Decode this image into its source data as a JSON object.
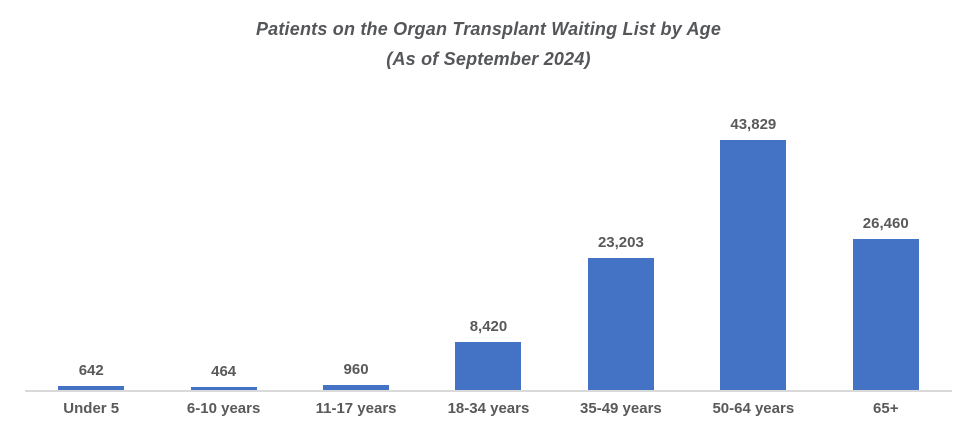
{
  "title": {
    "line1": "Patients on the Organ Transplant Waiting List by Age",
    "line2": "(As of September 2024)"
  },
  "colors": {
    "bar": "#4472C4",
    "text": "#595959",
    "title_text": "#555659",
    "axis_line": "#D9D9D9",
    "background": "#FFFFFF"
  },
  "chart_data": {
    "type": "bar",
    "title": "Patients on the Organ Transplant Waiting List by Age (As of September 2024)",
    "categories": [
      "Under 5",
      "6-10 years",
      "11-17 years",
      "18-34 years",
      "35-49 years",
      "50-64 years",
      "65+"
    ],
    "values": [
      642,
      464,
      960,
      8420,
      23203,
      43829,
      26460
    ],
    "data_labels": [
      "642",
      "464",
      "960",
      "8,420",
      "23,203",
      "43,829",
      "26,460"
    ],
    "xlabel": "",
    "ylabel": "",
    "ylim": [
      0,
      45000
    ],
    "grid": false,
    "legend": false,
    "y_axis_visible": false,
    "data_labels_visible": true,
    "orientation": "vertical"
  }
}
